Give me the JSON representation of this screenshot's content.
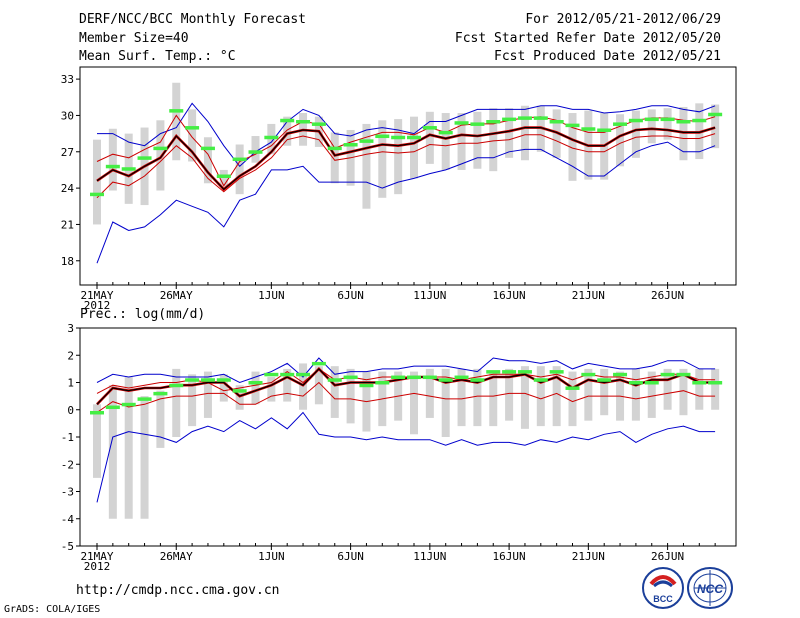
{
  "header": {
    "title": "DERF/NCC/BCC Monthly Forecast",
    "member_size": "Member Size=40",
    "variable": "Mean Surf. Temp.: °C",
    "period": "For 2012/05/21-2012/06/29",
    "started": "Fcst Started Refer Date 2012/05/20",
    "produced": "Fcst Produced Date 2012/05/21"
  },
  "footer": {
    "url": "http://cmdp.ncc.cma.gov.cn",
    "grads": "GrADS: COLA/IGES",
    "logo_bcc": "BCC",
    "logo_ncc": "NCC"
  },
  "colors": {
    "max_min": "#0000cc",
    "spread": "#cc0000",
    "mean": "#000000",
    "median_marker": "#44ee44",
    "box": "#d3d3d3"
  },
  "chart_data": [
    {
      "type": "line",
      "title": "Mean Surf. Temp.: °C",
      "ylim": [
        16,
        34
      ],
      "yticks": [
        "33",
        "30",
        "27",
        "24",
        "21",
        "18"
      ],
      "ytick_values": [
        33,
        30,
        27,
        24,
        21,
        18
      ],
      "xtick_labels": [
        "21MAY",
        "26MAY",
        "1JUN",
        "6JUN",
        "11JUN",
        "16JUN",
        "21JUN",
        "26JUN"
      ],
      "xtick_days": [
        0,
        5,
        11,
        16,
        21,
        26,
        31,
        36
      ],
      "year_label": "2012",
      "days": 40,
      "max": [
        28.5,
        28.5,
        27.8,
        27.5,
        28.5,
        29.0,
        31.0,
        29.5,
        27.5,
        25.8,
        27.0,
        27.8,
        29.5,
        30.5,
        30.0,
        28.5,
        28.3,
        28.8,
        29.0,
        28.8,
        28.5,
        29.5,
        29.5,
        30.0,
        30.5,
        30.5,
        30.5,
        30.5,
        30.8,
        30.8,
        30.5,
        30.5,
        30.2,
        30.3,
        30.5,
        30.8,
        30.8,
        30.5,
        30.3,
        30.8
      ],
      "min": [
        17.8,
        21.2,
        20.5,
        20.8,
        21.8,
        23.0,
        22.5,
        22.0,
        20.8,
        23.0,
        23.5,
        25.5,
        25.5,
        25.8,
        24.5,
        24.5,
        24.5,
        24.5,
        24.0,
        24.5,
        24.8,
        25.2,
        25.5,
        26.0,
        26.5,
        26.5,
        27.0,
        27.2,
        27.2,
        26.5,
        25.8,
        25.0,
        25.0,
        26.0,
        27.0,
        27.5,
        27.8,
        27.0,
        27.0,
        27.5
      ],
      "upper": [
        26.2,
        26.8,
        26.5,
        27.2,
        27.8,
        30.0,
        28.2,
        26.8,
        24.2,
        26.2,
        26.8,
        27.5,
        28.8,
        29.5,
        29.3,
        27.3,
        27.8,
        28.2,
        28.6,
        28.6,
        28.4,
        29.0,
        28.6,
        29.2,
        29.3,
        29.3,
        29.6,
        29.8,
        29.9,
        29.6,
        29.0,
        28.6,
        28.6,
        29.1,
        29.6,
        29.8,
        29.8,
        29.6,
        29.5,
        29.9
      ],
      "mean": [
        24.6,
        25.5,
        25.0,
        25.8,
        26.5,
        28.3,
        27.0,
        25.3,
        23.9,
        25.0,
        25.8,
        27.0,
        28.5,
        28.8,
        28.7,
        26.7,
        27.0,
        27.3,
        27.6,
        27.5,
        27.7,
        28.4,
        28.1,
        28.4,
        28.3,
        28.5,
        28.7,
        29.0,
        29.0,
        28.6,
        28.0,
        27.5,
        27.5,
        28.3,
        28.8,
        28.9,
        28.8,
        28.6,
        28.6,
        29.0
      ],
      "lower": [
        23.2,
        24.5,
        24.2,
        25.0,
        26.2,
        27.5,
        26.5,
        24.8,
        23.7,
        24.8,
        25.5,
        26.5,
        28.0,
        28.3,
        28.0,
        26.3,
        26.5,
        26.8,
        27.0,
        26.9,
        27.0,
        27.6,
        27.5,
        27.7,
        27.7,
        27.9,
        28.0,
        28.4,
        28.4,
        27.9,
        27.3,
        27.0,
        27.0,
        27.7,
        28.2,
        28.3,
        28.3,
        28.1,
        28.1,
        28.5
      ],
      "box_top": [
        28.0,
        28.9,
        28.5,
        29.0,
        29.6,
        32.7,
        30.5,
        28.2,
        25.5,
        27.6,
        28.3,
        29.3,
        29.9,
        30.2,
        29.9,
        28.6,
        28.8,
        29.3,
        29.6,
        29.7,
        29.9,
        30.3,
        30.2,
        30.2,
        30.3,
        30.6,
        30.6,
        30.8,
        30.8,
        30.5,
        30.2,
        30.4,
        30.2,
        30.1,
        30.4,
        30.5,
        30.6,
        30.7,
        31.0,
        30.9
      ],
      "box_bot": [
        21.0,
        23.8,
        22.7,
        22.6,
        23.8,
        26.3,
        26.2,
        24.4,
        24.1,
        23.5,
        26.1,
        26.8,
        27.5,
        27.5,
        27.4,
        24.4,
        24.2,
        22.3,
        23.2,
        23.5,
        24.8,
        26.0,
        25.5,
        25.5,
        25.6,
        25.4,
        26.5,
        26.3,
        27.0,
        26.5,
        24.6,
        24.7,
        24.7,
        25.8,
        26.5,
        27.7,
        28.0,
        26.3,
        26.4,
        27.3
      ],
      "median": [
        23.5,
        25.8,
        25.6,
        26.5,
        27.3,
        30.4,
        29.0,
        27.3,
        25.0,
        26.4,
        27.0,
        28.2,
        29.6,
        29.5,
        29.3,
        27.3,
        27.6,
        27.9,
        28.3,
        28.2,
        28.2,
        29.0,
        28.6,
        29.4,
        29.3,
        29.5,
        29.7,
        29.8,
        29.8,
        29.5,
        29.2,
        28.9,
        28.8,
        29.3,
        29.6,
        29.7,
        29.7,
        29.5,
        29.6,
        30.1
      ]
    },
    {
      "type": "line",
      "title": "Prec.: log(mm/d)",
      "ylim": [
        -5,
        3
      ],
      "yticks": [
        "3",
        "2",
        "1",
        "0",
        "-1",
        "-2",
        "-3",
        "-4",
        "-5"
      ],
      "ytick_values": [
        3,
        2,
        1,
        0,
        -1,
        -2,
        -3,
        -4,
        -5
      ],
      "xtick_labels": [
        "21MAY",
        "26MAY",
        "1JUN",
        "6JUN",
        "11JUN",
        "16JUN",
        "21JUN",
        "26JUN"
      ],
      "xtick_days": [
        0,
        5,
        11,
        16,
        21,
        26,
        31,
        36
      ],
      "year_label": "2012",
      "days": 40,
      "max": [
        1.0,
        1.3,
        1.2,
        1.3,
        1.3,
        1.2,
        1.2,
        1.2,
        1.3,
        1.0,
        1.2,
        1.4,
        1.7,
        1.2,
        1.9,
        1.3,
        1.4,
        1.4,
        1.5,
        1.5,
        1.6,
        1.6,
        1.6,
        1.5,
        1.4,
        1.9,
        1.8,
        1.8,
        1.7,
        1.8,
        1.5,
        1.7,
        1.6,
        1.5,
        1.5,
        1.6,
        1.8,
        1.8,
        1.5,
        1.5
      ],
      "min": [
        -3.4,
        -1.0,
        -0.8,
        -0.9,
        -1.0,
        -1.2,
        -0.8,
        -0.6,
        -0.8,
        -0.4,
        -0.7,
        -0.3,
        -0.7,
        -0.1,
        -0.9,
        -1.0,
        -1.0,
        -1.1,
        -1.0,
        -1.1,
        -1.1,
        -1.1,
        -1.3,
        -1.1,
        -1.3,
        -1.2,
        -1.2,
        -1.3,
        -1.1,
        -1.2,
        -1.0,
        -1.1,
        -0.9,
        -0.8,
        -1.2,
        -0.9,
        -0.7,
        -0.6,
        -0.8,
        -0.8
      ],
      "upper": [
        0.6,
        0.9,
        0.8,
        0.9,
        1.0,
        1.0,
        1.1,
        1.0,
        0.7,
        0.8,
        0.9,
        1.0,
        1.4,
        1.0,
        1.5,
        1.1,
        1.2,
        1.1,
        1.2,
        1.2,
        1.2,
        1.2,
        1.2,
        1.1,
        1.2,
        1.3,
        1.3,
        1.3,
        1.2,
        1.3,
        1.1,
        1.3,
        1.2,
        1.2,
        1.1,
        1.2,
        1.3,
        1.3,
        1.1,
        1.1
      ],
      "mean": [
        0.2,
        0.8,
        0.7,
        0.8,
        0.8,
        0.9,
        0.9,
        1.0,
        1.0,
        0.5,
        0.7,
        0.9,
        1.2,
        0.9,
        1.5,
        0.9,
        1.0,
        1.0,
        1.0,
        1.1,
        1.2,
        1.2,
        1.0,
        1.1,
        1.0,
        1.2,
        1.2,
        1.3,
        1.0,
        1.2,
        0.8,
        1.1,
        1.0,
        1.1,
        0.9,
        1.1,
        1.1,
        1.3,
        1.0,
        1.0
      ],
      "lower": [
        -0.1,
        0.3,
        0.1,
        0.2,
        0.4,
        0.5,
        0.5,
        0.6,
        0.6,
        0.2,
        0.2,
        0.5,
        0.6,
        0.5,
        1.0,
        0.4,
        0.4,
        0.3,
        0.4,
        0.5,
        0.6,
        0.5,
        0.4,
        0.4,
        0.5,
        0.5,
        0.6,
        0.6,
        0.4,
        0.6,
        0.3,
        0.5,
        0.5,
        0.5,
        0.4,
        0.5,
        0.6,
        0.7,
        0.5,
        0.5
      ],
      "box_top": [
        0.2,
        0.9,
        1.2,
        0.5,
        0.7,
        1.5,
        1.3,
        1.4,
        1.3,
        0.9,
        1.4,
        1.2,
        1.5,
        1.7,
        1.6,
        1.6,
        1.5,
        1.4,
        1.4,
        1.4,
        1.4,
        1.5,
        1.5,
        1.5,
        1.5,
        1.4,
        1.5,
        1.6,
        1.6,
        1.6,
        1.4,
        1.5,
        1.5,
        1.4,
        1.5,
        1.4,
        1.5,
        1.5,
        1.5,
        1.5
      ],
      "box_bot": [
        -2.5,
        -4.0,
        -4.0,
        -4.0,
        -1.4,
        -1.0,
        -0.6,
        -0.3,
        0.3,
        0.0,
        0.2,
        0.3,
        0.3,
        0.0,
        0.2,
        -0.3,
        -0.5,
        -0.8,
        -0.6,
        -0.4,
        -0.9,
        -0.3,
        -1.0,
        -0.6,
        -0.6,
        -0.6,
        -0.4,
        -0.7,
        -0.6,
        -0.6,
        -0.6,
        -0.4,
        -0.2,
        -0.4,
        -0.4,
        -0.3,
        0.0,
        -0.2,
        0.0,
        0.0
      ],
      "median": [
        -0.1,
        0.1,
        0.2,
        0.4,
        0.6,
        0.9,
        1.1,
        1.1,
        1.1,
        0.7,
        1.0,
        1.3,
        1.3,
        1.3,
        1.7,
        1.1,
        1.2,
        0.9,
        1.0,
        1.2,
        1.2,
        1.2,
        1.1,
        1.2,
        1.1,
        1.4,
        1.4,
        1.4,
        1.1,
        1.4,
        0.8,
        1.3,
        1.1,
        1.3,
        1.0,
        1.0,
        1.3,
        1.3,
        1.0,
        1.0
      ]
    }
  ]
}
